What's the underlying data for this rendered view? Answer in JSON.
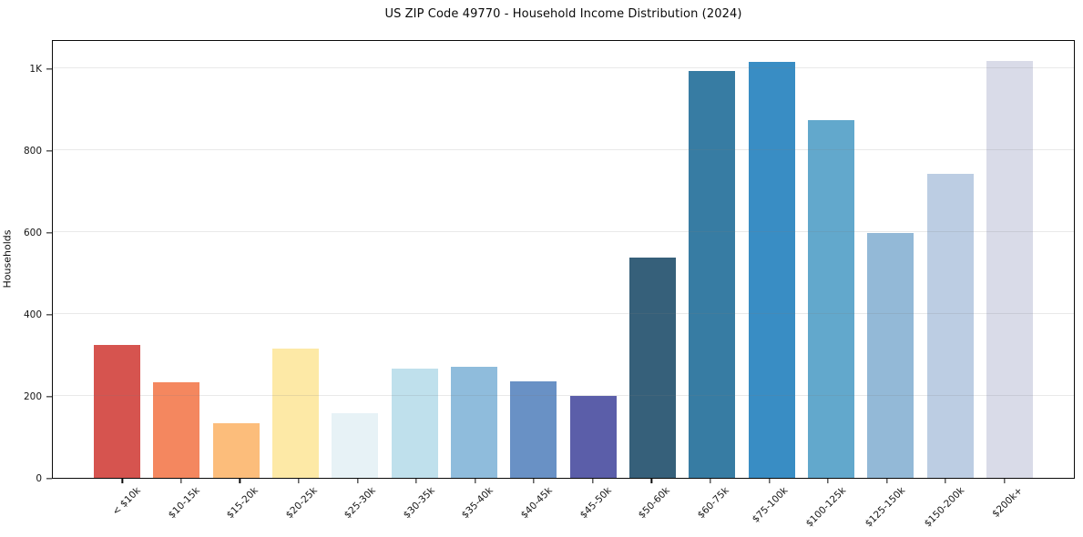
{
  "chart_data": {
    "type": "bar",
    "title": "US ZIP Code 49770 - Household Income Distribution (2024)",
    "xlabel": "",
    "ylabel": "Households",
    "categories": [
      "< $10k",
      "$10-15k",
      "$15-20k",
      "$20-25k",
      "$25-30k",
      "$30-35k",
      "$35-40k",
      "$40-45k",
      "$45-50k",
      "$50-60k",
      "$60-75k",
      "$75-100k",
      "$100-125k",
      "$125-150k",
      "$150-200k",
      "$200k+"
    ],
    "values": [
      325,
      234,
      133,
      315,
      157,
      267,
      272,
      235,
      200,
      537,
      993,
      1015,
      873,
      598,
      742,
      1016
    ],
    "bar_colors": [
      "#d6544f",
      "#f4875f",
      "#fcbd7b",
      "#fde9a6",
      "#e7f2f6",
      "#bfe0ec",
      "#8fbcdc",
      "#6991c5",
      "#5b5ea9",
      "#36607a",
      "#377ca3",
      "#398dc4",
      "#62a8cc",
      "#93b9d7",
      "#bccde3",
      "#d9dbe8"
    ],
    "ylim": [
      0,
      1070
    ],
    "yticks": [
      {
        "value": 0,
        "label": "0"
      },
      {
        "value": 200,
        "label": "200"
      },
      {
        "value": 400,
        "label": "400"
      },
      {
        "value": 600,
        "label": "600"
      },
      {
        "value": 800,
        "label": "800"
      },
      {
        "value": 1000,
        "label": "1K"
      }
    ],
    "gridline_values": [
      200,
      400,
      600,
      800,
      1000
    ],
    "grid": "horizontal",
    "legend": "none",
    "background": "#ffffff",
    "axis_color": "#0a0a0a",
    "gridline_color": "#ebebeb"
  }
}
